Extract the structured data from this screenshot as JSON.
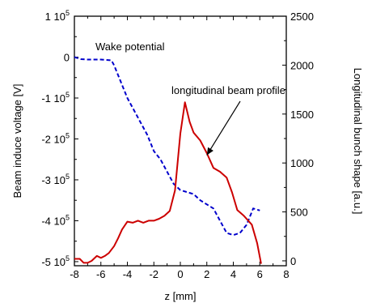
{
  "chart_data": {
    "type": "line",
    "xlabel": "z [mm]",
    "ylabel_left": "Beam induce voltage [V]",
    "ylabel_right": "Longitudinal bunch shape [a.u.]",
    "xlim": [
      -8,
      8
    ],
    "ylim_left": [
      -510000,
      100000
    ],
    "ylim_right": [
      -50,
      2500
    ],
    "grid": false,
    "x_ticks": [
      -8,
      -6,
      -4,
      -2,
      0,
      2,
      4,
      6,
      8
    ],
    "y_left_ticks": [
      {
        "value": 100000,
        "mant": "1 10",
        "exp": "5"
      },
      {
        "value": 0,
        "mant": "0",
        "exp": ""
      },
      {
        "value": -100000,
        "mant": "-1 10",
        "exp": "5"
      },
      {
        "value": -200000,
        "mant": "-2 10",
        "exp": "5"
      },
      {
        "value": -300000,
        "mant": "-3 10",
        "exp": "5"
      },
      {
        "value": -400000,
        "mant": "-4 10",
        "exp": "5"
      },
      {
        "value": -500000,
        "mant": "-5 10",
        "exp": "5"
      }
    ],
    "y_right_ticks": [
      0,
      500,
      1000,
      1500,
      2000,
      2500
    ],
    "annotations": {
      "wake": "Wake potential",
      "profile": "longitudinal beam profile"
    },
    "series": [
      {
        "axis": "left",
        "color": "#0000cc",
        "dash": true,
        "x": [
          -8,
          -7.5,
          -7,
          -6,
          -5.2,
          -5.0,
          -4.5,
          -4.0,
          -3.5,
          -3.0,
          -2.5,
          -2.0,
          -1.5,
          -1.0,
          -0.5,
          0,
          0.5,
          1.0,
          1.5,
          2.0,
          2.5,
          3.0,
          3.5,
          4.0,
          4.5,
          5.0,
          5.5,
          6.0
        ],
        "y": [
          0,
          -5000,
          -6000,
          -6000,
          -8000,
          -20000,
          -60000,
          -100000,
          -130000,
          -160000,
          -190000,
          -230000,
          -250000,
          -280000,
          -310000,
          -325000,
          -330000,
          -335000,
          -350000,
          -360000,
          -370000,
          -400000,
          -430000,
          -435000,
          -430000,
          -410000,
          -370000,
          -375000
        ]
      },
      {
        "axis": "right",
        "color": "#cc0000",
        "dash": false,
        "x": [
          -8,
          -7.6,
          -7.3,
          -7.0,
          -6.7,
          -6.3,
          -6.0,
          -5.7,
          -5.4,
          -5.0,
          -4.7,
          -4.4,
          -4.0,
          -3.6,
          -3.2,
          -2.8,
          -2.4,
          -2.0,
          -1.6,
          -1.2,
          -0.8,
          -0.4,
          0,
          0.35,
          0.7,
          1.0,
          1.5,
          2.0,
          2.5,
          3.0,
          3.5,
          3.9,
          4.3,
          4.8,
          5.4,
          5.8,
          6.1
        ],
        "y": [
          20,
          20,
          -20,
          -20,
          0,
          50,
          30,
          50,
          80,
          150,
          230,
          320,
          400,
          390,
          410,
          390,
          410,
          410,
          430,
          460,
          510,
          720,
          1300,
          1620,
          1420,
          1310,
          1230,
          1100,
          950,
          910,
          850,
          700,
          520,
          460,
          370,
          180,
          -30
        ]
      }
    ]
  }
}
